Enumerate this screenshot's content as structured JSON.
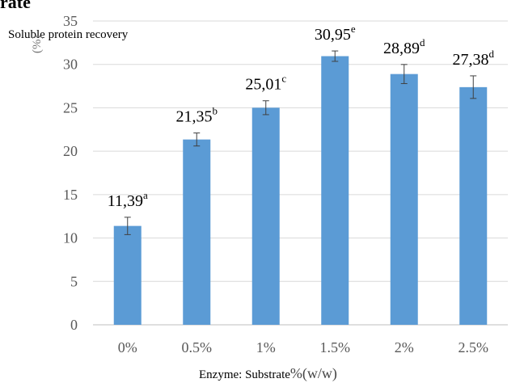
{
  "header_fragment": "rate",
  "chart_data": {
    "type": "bar",
    "categories": [
      "0%",
      "0.5%",
      "1%",
      "1.5%",
      "2%",
      "2.5%"
    ],
    "values": [
      11.39,
      21.35,
      25.01,
      30.95,
      28.89,
      27.38
    ],
    "errors": [
      1.0,
      0.75,
      0.8,
      0.6,
      1.1,
      1.3
    ],
    "data_labels": [
      "11,39",
      "21,35",
      "25,01",
      "30,95",
      "28,89",
      "27,38"
    ],
    "superscripts": [
      "a",
      "b",
      "c",
      "e",
      "d",
      "d"
    ],
    "ylabel_line1": "Soluble protein recovery",
    "ylabel_line2": "(%)",
    "xlabel_prefix": "Enzyme: Substrate",
    "xlabel_suffix": "%(w/w)",
    "ylim": [
      0,
      35
    ],
    "yticks": [
      0,
      5,
      10,
      15,
      20,
      25,
      30,
      35
    ],
    "grid": true,
    "legend": "none",
    "bar_color": "#5B9BD5",
    "grid_color": "#D9D9D9"
  }
}
